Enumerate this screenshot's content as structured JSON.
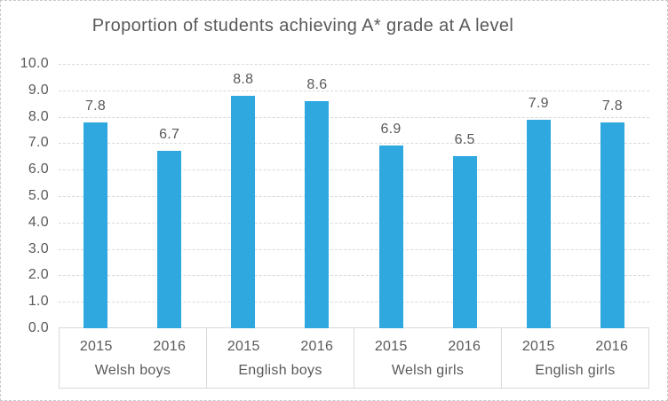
{
  "chart_data": {
    "type": "bar",
    "title": "Proportion of students achieving A* grade at A level",
    "xlabel": "",
    "ylabel": "",
    "ylim": [
      0,
      10
    ],
    "ytick_step": 1,
    "ytick_labels": [
      "0.0",
      "1.0",
      "2.0",
      "3.0",
      "4.0",
      "5.0",
      "6.0",
      "7.0",
      "8.0",
      "9.0",
      "10.0"
    ],
    "grid": true,
    "legend": "none",
    "groups": [
      {
        "label": "Welsh boys",
        "categories": [
          "2015",
          "2016"
        ],
        "values": [
          7.8,
          6.7
        ]
      },
      {
        "label": "English boys",
        "categories": [
          "2015",
          "2016"
        ],
        "values": [
          8.8,
          8.6
        ]
      },
      {
        "label": "Welsh girls",
        "categories": [
          "2015",
          "2016"
        ],
        "values": [
          6.9,
          6.5
        ]
      },
      {
        "label": "English girls",
        "categories": [
          "2015",
          "2016"
        ],
        "values": [
          7.9,
          7.8
        ]
      }
    ],
    "value_labels": [
      "7.8",
      "6.7",
      "8.8",
      "8.6",
      "6.9",
      "6.5",
      "7.9",
      "7.8"
    ],
    "colors": {
      "bar": "#2EA8DF",
      "text": "#595959",
      "gridline": "#D9D9D9",
      "axis_line": "#D9D9D9",
      "frame_border": "#C9C9C9",
      "background": "#FFFFFF"
    }
  }
}
